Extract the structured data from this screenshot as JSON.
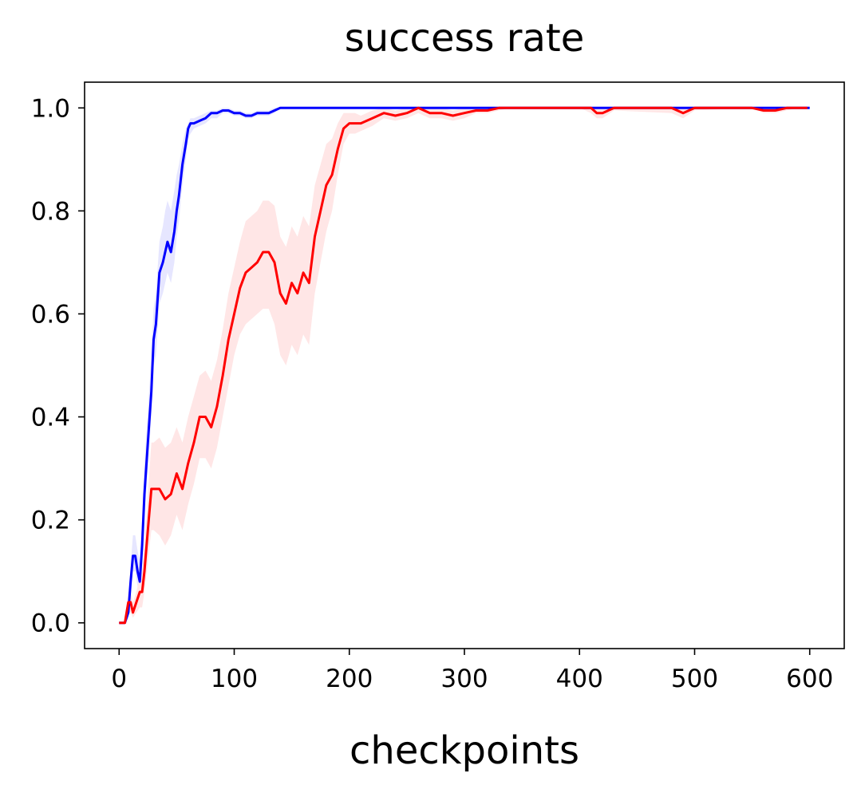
{
  "chart_data": {
    "type": "line",
    "title": "success rate",
    "xlabel": "checkpoints",
    "ylabel": "",
    "xlim": [
      -30,
      630
    ],
    "ylim": [
      -0.05,
      1.05
    ],
    "xticks": [
      0,
      100,
      200,
      300,
      400,
      500,
      600
    ],
    "xtick_labels": [
      "0",
      "100",
      "200",
      "300",
      "400",
      "500",
      "600"
    ],
    "yticks": [
      0.0,
      0.2,
      0.4,
      0.6,
      0.8,
      1.0
    ],
    "ytick_labels": [
      "0.0",
      "0.2",
      "0.4",
      "0.6",
      "0.8",
      "1.0"
    ],
    "grid": false,
    "legend": "none",
    "series": [
      {
        "color": "#0000ff",
        "band_color": "#e6e6ff",
        "x": [
          0,
          5,
          8,
          10,
          12,
          14,
          16,
          18,
          20,
          22,
          25,
          28,
          30,
          32,
          35,
          38,
          40,
          42,
          45,
          48,
          50,
          52,
          55,
          58,
          60,
          62,
          65,
          70,
          75,
          80,
          85,
          90,
          95,
          100,
          105,
          110,
          115,
          120,
          130,
          135,
          140,
          145,
          150,
          200,
          250,
          300,
          350,
          400,
          450,
          500,
          550,
          600
        ],
        "y": [
          0,
          0,
          0.02,
          0.08,
          0.13,
          0.13,
          0.1,
          0.08,
          0.15,
          0.25,
          0.35,
          0.45,
          0.55,
          0.58,
          0.68,
          0.7,
          0.72,
          0.74,
          0.72,
          0.76,
          0.8,
          0.83,
          0.89,
          0.93,
          0.96,
          0.97,
          0.97,
          0.975,
          0.98,
          0.99,
          0.99,
          0.995,
          0.995,
          0.99,
          0.99,
          0.985,
          0.985,
          0.99,
          0.99,
          0.995,
          1.0,
          1.0,
          1.0,
          1.0,
          1.0,
          1.0,
          1.0,
          1.0,
          1.0,
          1.0,
          1.0,
          1.0
        ],
        "lower": [
          0,
          0,
          0.01,
          0.05,
          0.1,
          0.1,
          0.07,
          0.05,
          0.11,
          0.2,
          0.3,
          0.4,
          0.5,
          0.52,
          0.62,
          0.64,
          0.66,
          0.68,
          0.66,
          0.7,
          0.75,
          0.78,
          0.85,
          0.9,
          0.94,
          0.95,
          0.96,
          0.965,
          0.97,
          0.98,
          0.98,
          0.99,
          0.99,
          0.985,
          0.985,
          0.98,
          0.98,
          0.985,
          0.985,
          0.99,
          1.0,
          1.0,
          1.0,
          1.0,
          1.0,
          1.0,
          1.0,
          1.0,
          1.0,
          1.0,
          1.0,
          1.0
        ],
        "upper": [
          0,
          0,
          0.04,
          0.11,
          0.17,
          0.17,
          0.14,
          0.12,
          0.2,
          0.31,
          0.41,
          0.52,
          0.61,
          0.64,
          0.74,
          0.77,
          0.8,
          0.82,
          0.8,
          0.84,
          0.87,
          0.89,
          0.93,
          0.96,
          0.97,
          0.98,
          0.98,
          0.985,
          0.99,
          0.995,
          0.995,
          1.0,
          1.0,
          0.995,
          0.995,
          0.99,
          0.99,
          0.995,
          0.995,
          1.0,
          1.0,
          1.0,
          1.0,
          1.0,
          1.0,
          1.0,
          1.0,
          1.0,
          1.0,
          1.0,
          1.0,
          1.0
        ]
      },
      {
        "color": "#ff0000",
        "band_color": "#ffe6e6",
        "x": [
          0,
          5,
          8,
          10,
          12,
          15,
          18,
          20,
          22,
          25,
          28,
          30,
          35,
          40,
          45,
          50,
          55,
          60,
          65,
          70,
          75,
          80,
          85,
          90,
          95,
          100,
          105,
          110,
          115,
          120,
          125,
          130,
          135,
          140,
          145,
          150,
          155,
          160,
          165,
          170,
          175,
          180,
          185,
          190,
          195,
          200,
          205,
          210,
          220,
          230,
          240,
          250,
          260,
          270,
          280,
          290,
          300,
          310,
          320,
          330,
          340,
          350,
          400,
          410,
          415,
          420,
          430,
          480,
          490,
          500,
          550,
          560,
          570,
          580,
          590,
          598
        ],
        "y": [
          0,
          0,
          0.04,
          0.04,
          0.02,
          0.04,
          0.06,
          0.06,
          0.1,
          0.18,
          0.26,
          0.26,
          0.26,
          0.24,
          0.25,
          0.29,
          0.26,
          0.31,
          0.35,
          0.4,
          0.4,
          0.38,
          0.42,
          0.48,
          0.55,
          0.6,
          0.65,
          0.68,
          0.69,
          0.7,
          0.72,
          0.72,
          0.7,
          0.64,
          0.62,
          0.66,
          0.64,
          0.68,
          0.66,
          0.75,
          0.8,
          0.85,
          0.87,
          0.92,
          0.96,
          0.97,
          0.97,
          0.97,
          0.98,
          0.99,
          0.985,
          0.99,
          1.0,
          0.99,
          0.99,
          0.985,
          0.99,
          0.995,
          0.995,
          1.0,
          1.0,
          1.0,
          1.0,
          1.0,
          0.99,
          0.99,
          1.0,
          1.0,
          0.99,
          1.0,
          1.0,
          0.995,
          0.995,
          1.0,
          1.0,
          1.0
        ],
        "lower": [
          0,
          0,
          0.02,
          0.02,
          0.01,
          0.02,
          0.03,
          0.03,
          0.06,
          0.12,
          0.18,
          0.18,
          0.17,
          0.15,
          0.17,
          0.21,
          0.18,
          0.23,
          0.27,
          0.32,
          0.32,
          0.3,
          0.34,
          0.4,
          0.46,
          0.52,
          0.56,
          0.58,
          0.59,
          0.6,
          0.61,
          0.61,
          0.58,
          0.52,
          0.5,
          0.54,
          0.52,
          0.56,
          0.54,
          0.64,
          0.7,
          0.76,
          0.8,
          0.87,
          0.93,
          0.95,
          0.95,
          0.955,
          0.965,
          0.98,
          0.975,
          0.98,
          0.99,
          0.98,
          0.98,
          0.975,
          0.98,
          0.99,
          0.99,
          0.995,
          1.0,
          1.0,
          1.0,
          0.99,
          0.98,
          0.98,
          0.995,
          0.99,
          0.98,
          0.995,
          1.0,
          0.99,
          0.99,
          0.995,
          1.0,
          1.0
        ],
        "upper": [
          0,
          0,
          0.06,
          0.06,
          0.04,
          0.06,
          0.09,
          0.1,
          0.15,
          0.25,
          0.35,
          0.35,
          0.36,
          0.34,
          0.35,
          0.38,
          0.35,
          0.4,
          0.44,
          0.48,
          0.49,
          0.47,
          0.51,
          0.57,
          0.64,
          0.69,
          0.74,
          0.78,
          0.79,
          0.8,
          0.82,
          0.82,
          0.81,
          0.75,
          0.73,
          0.77,
          0.75,
          0.79,
          0.77,
          0.85,
          0.89,
          0.93,
          0.94,
          0.97,
          0.99,
          0.99,
          0.99,
          0.985,
          0.995,
          1.0,
          0.995,
          1.0,
          1.0,
          1.0,
          1.0,
          0.995,
          1.0,
          1.0,
          1.0,
          1.0,
          1.0,
          1.0,
          1.0,
          1.0,
          1.0,
          1.0,
          1.0,
          1.0,
          1.0,
          1.0,
          1.0,
          1.0,
          1.0,
          1.0,
          1.0,
          1.0
        ]
      }
    ]
  }
}
